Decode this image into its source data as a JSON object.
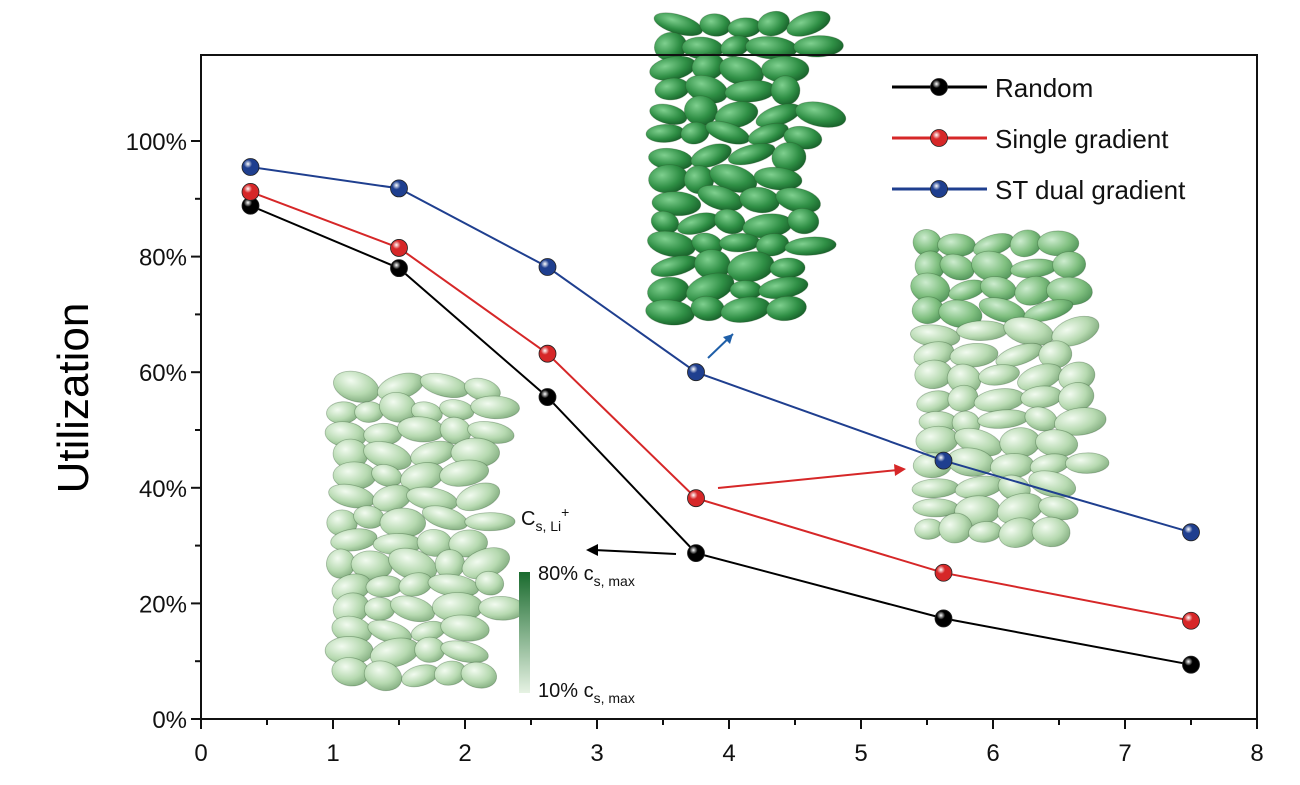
{
  "chart_data": {
    "type": "line",
    "title": "",
    "xlabel": "",
    "ylabel": "Utilization",
    "xlim": [
      0,
      8
    ],
    "ylim": [
      0,
      1.0
    ],
    "x_ticks": [
      "0",
      "1",
      "2",
      "3",
      "4",
      "5",
      "6",
      "7",
      "8"
    ],
    "y_ticks": [
      "0%",
      "20%",
      "40%",
      "60%",
      "80%",
      "100%"
    ],
    "grid": false,
    "legend_position": "top-right",
    "x": [
      0.375,
      1.5,
      2.625,
      3.75,
      5.625,
      7.5
    ],
    "series": [
      {
        "name": "Random",
        "color": "#000000",
        "values": [
          0.888,
          0.78,
          0.557,
          0.287,
          0.174,
          0.094
        ]
      },
      {
        "name": "Single gradient",
        "color": "#d62728",
        "values": [
          0.912,
          0.815,
          0.632,
          0.382,
          0.253,
          0.17
        ]
      },
      {
        "name": "ST dual gradient",
        "color": "#1f3f8f",
        "values": [
          0.955,
          0.918,
          0.782,
          0.6,
          0.447,
          0.323
        ]
      }
    ],
    "colorbar": {
      "title": "C",
      "title_sub": "s, Li",
      "title_sup": "+",
      "max_label": "80% c",
      "max_sub": "s, max",
      "min_label": "10% c",
      "min_sub": "s, max",
      "color_high": "#1a6b2e",
      "color_low": "#e6f2e3"
    }
  }
}
